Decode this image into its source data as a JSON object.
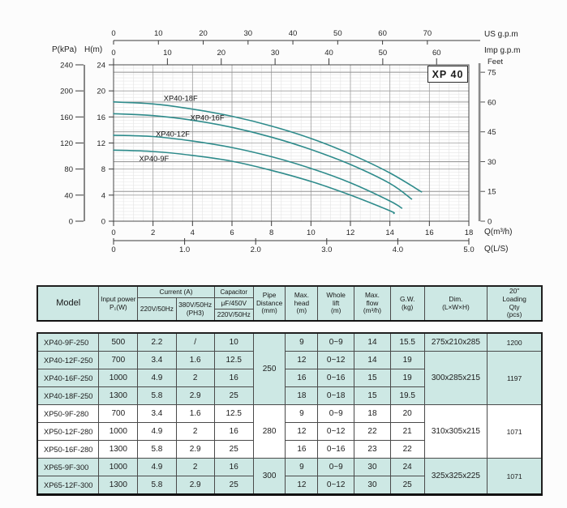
{
  "chart": {
    "model_box": "XP 40",
    "accent_color": "#2e8b8b",
    "axis_labels": {
      "us": "US g.p.m",
      "imp": "Imp g.p.m",
      "p": "P(kPa)",
      "h": "H(m)",
      "feet": "Feet",
      "q_m3h": "Q(m³/h)",
      "q_ls": "Q(L/S)"
    }
  },
  "chart_data": {
    "type": "line",
    "title": "XP 40",
    "xlabel": "Q(m³/h)",
    "ylabel": "H(m)",
    "xlim": [
      0,
      18
    ],
    "ylim": [
      0,
      24
    ],
    "grid": "fine",
    "legend_position": "labels-on-curves",
    "x_ticks_m3h": [
      0,
      2,
      4,
      6,
      8,
      10,
      12,
      14,
      16,
      18
    ],
    "y_ticks_h_m": [
      24,
      20,
      16,
      12,
      8,
      4,
      0
    ],
    "y_ticks_p_kpa": [
      240,
      200,
      160,
      120,
      80,
      40,
      0
    ],
    "top_axis_us_gpm": [
      0,
      10,
      20,
      30,
      40,
      50,
      60,
      70
    ],
    "top_axis_imp_gpm": [
      0,
      10,
      20,
      30,
      40,
      50,
      60
    ],
    "right_axis_feet": [
      75,
      60,
      45,
      30,
      15,
      0
    ],
    "bottom_axis_ls": [
      "0",
      "1.0",
      "2.0",
      "3.0",
      "4.0",
      "5.0"
    ],
    "series": [
      {
        "name": "XP40-18F",
        "label_at": {
          "q": 3.4,
          "h": 18.85
        },
        "points": [
          [
            0,
            18.3
          ],
          [
            2,
            18.0
          ],
          [
            4,
            17.2
          ],
          [
            6,
            16.1
          ],
          [
            8,
            14.6
          ],
          [
            10,
            12.7
          ],
          [
            12,
            10.3
          ],
          [
            14,
            7.4
          ],
          [
            15.6,
            4.5
          ]
        ]
      },
      {
        "name": "XP40-16F",
        "label_at": {
          "q": 4.75,
          "h": 15.85
        },
        "points": [
          [
            0,
            16.5
          ],
          [
            2,
            16.2
          ],
          [
            4,
            15.5
          ],
          [
            6,
            14.4
          ],
          [
            8,
            12.9
          ],
          [
            10,
            11.0
          ],
          [
            12,
            8.7
          ],
          [
            14,
            5.8
          ],
          [
            15.1,
            3.4
          ]
        ]
      },
      {
        "name": "XP40-12F",
        "label_at": {
          "q": 3.0,
          "h": 13.35
        },
        "points": [
          [
            0,
            13.2
          ],
          [
            2,
            13.0
          ],
          [
            4,
            12.3
          ],
          [
            6,
            11.3
          ],
          [
            8,
            9.9
          ],
          [
            10,
            8.1
          ],
          [
            12,
            5.9
          ],
          [
            14,
            3.1
          ],
          [
            14.6,
            2.0
          ]
        ]
      },
      {
        "name": "XP40-9F",
        "label_at": {
          "q": 2.05,
          "h": 9.55
        },
        "points": [
          [
            0,
            10.9
          ],
          [
            2,
            10.7
          ],
          [
            4,
            10.1
          ],
          [
            6,
            9.2
          ],
          [
            8,
            7.8
          ],
          [
            10,
            6.1
          ],
          [
            12,
            4.0
          ],
          [
            14,
            1.6
          ],
          [
            14.2,
            1.2
          ]
        ]
      }
    ]
  },
  "table": {
    "header": {
      "model": "Model",
      "input_power": "Input power\nP₁(W)",
      "current": "Current  (A)",
      "current_220": "220V/50Hz",
      "current_380": "380V/50Hz\n(PH3)",
      "capacitor": "Capacitor",
      "capacitor_uf": "μF/450V",
      "capacitor_220": "220V/50Hz",
      "pipe": "Pipe\nDistance\n(mm)",
      "max_head": "Max.\nhead\n(m)",
      "whole_lift": "Whole\nlift\n(m)",
      "max_flow": "Max.\nflow\n(m³/h)",
      "gw": "G.W.\n(kg)",
      "dim": "Dim.\n(L×W×H)",
      "loading": "20\"\nLoading\nQty\n(pcs)"
    },
    "groups": [
      {
        "pipe_distance": "250",
        "shaded": true,
        "rows": [
          {
            "model": "XP40-9F-250",
            "power": "500",
            "i220": "2.2",
            "i380": "/",
            "cap": "10",
            "head": "9",
            "lift": "0~9",
            "flow": "14",
            "gw": "15.5"
          },
          {
            "model": "XP40-12F-250",
            "power": "700",
            "i220": "3.4",
            "i380": "1.6",
            "cap": "12.5",
            "head": "12",
            "lift": "0~12",
            "flow": "14",
            "gw": "19"
          },
          {
            "model": "XP40-16F-250",
            "power": "1000",
            "i220": "4.9",
            "i380": "2",
            "cap": "16",
            "head": "16",
            "lift": "0~16",
            "flow": "15",
            "gw": "19"
          },
          {
            "model": "XP40-18F-250",
            "power": "1300",
            "i220": "5.8",
            "i380": "2.9",
            "cap": "25",
            "head": "18",
            "lift": "0~18",
            "flow": "15",
            "gw": "19.5"
          }
        ],
        "dims": [
          {
            "span": 1,
            "text": "275x210x285"
          },
          {
            "span": 3,
            "text": "300x285x215"
          }
        ],
        "loadings": [
          {
            "span": 1,
            "text": "1200"
          },
          {
            "span": 3,
            "text": "1197"
          }
        ]
      },
      {
        "pipe_distance": "280",
        "shaded": false,
        "rows": [
          {
            "model": "XP50-9F-280",
            "power": "700",
            "i220": "3.4",
            "i380": "1.6",
            "cap": "12.5",
            "head": "9",
            "lift": "0~9",
            "flow": "18",
            "gw": "20"
          },
          {
            "model": "XP50-12F-280",
            "power": "1000",
            "i220": "4.9",
            "i380": "2",
            "cap": "16",
            "head": "12",
            "lift": "0~12",
            "flow": "22",
            "gw": "21"
          },
          {
            "model": "XP50-16F-280",
            "power": "1300",
            "i220": "5.8",
            "i380": "2.9",
            "cap": "25",
            "head": "16",
            "lift": "0~16",
            "flow": "23",
            "gw": "22"
          }
        ],
        "dims": [
          {
            "span": 3,
            "text": "310x305x215"
          }
        ],
        "loadings": [
          {
            "span": 3,
            "text": "1071"
          }
        ]
      },
      {
        "pipe_distance": "300",
        "shaded": true,
        "rows": [
          {
            "model": "XP65-9F-300",
            "power": "1000",
            "i220": "4.9",
            "i380": "2",
            "cap": "16",
            "head": "9",
            "lift": "0~9",
            "flow": "30",
            "gw": "24"
          },
          {
            "model": "XP65-12F-300",
            "power": "1300",
            "i220": "5.8",
            "i380": "2.9",
            "cap": "25",
            "head": "12",
            "lift": "0~12",
            "flow": "30",
            "gw": "25"
          }
        ],
        "dims": [
          {
            "span": 2,
            "text": "325x325x225"
          }
        ],
        "loadings": [
          {
            "span": 2,
            "text": "1071"
          }
        ]
      }
    ]
  }
}
